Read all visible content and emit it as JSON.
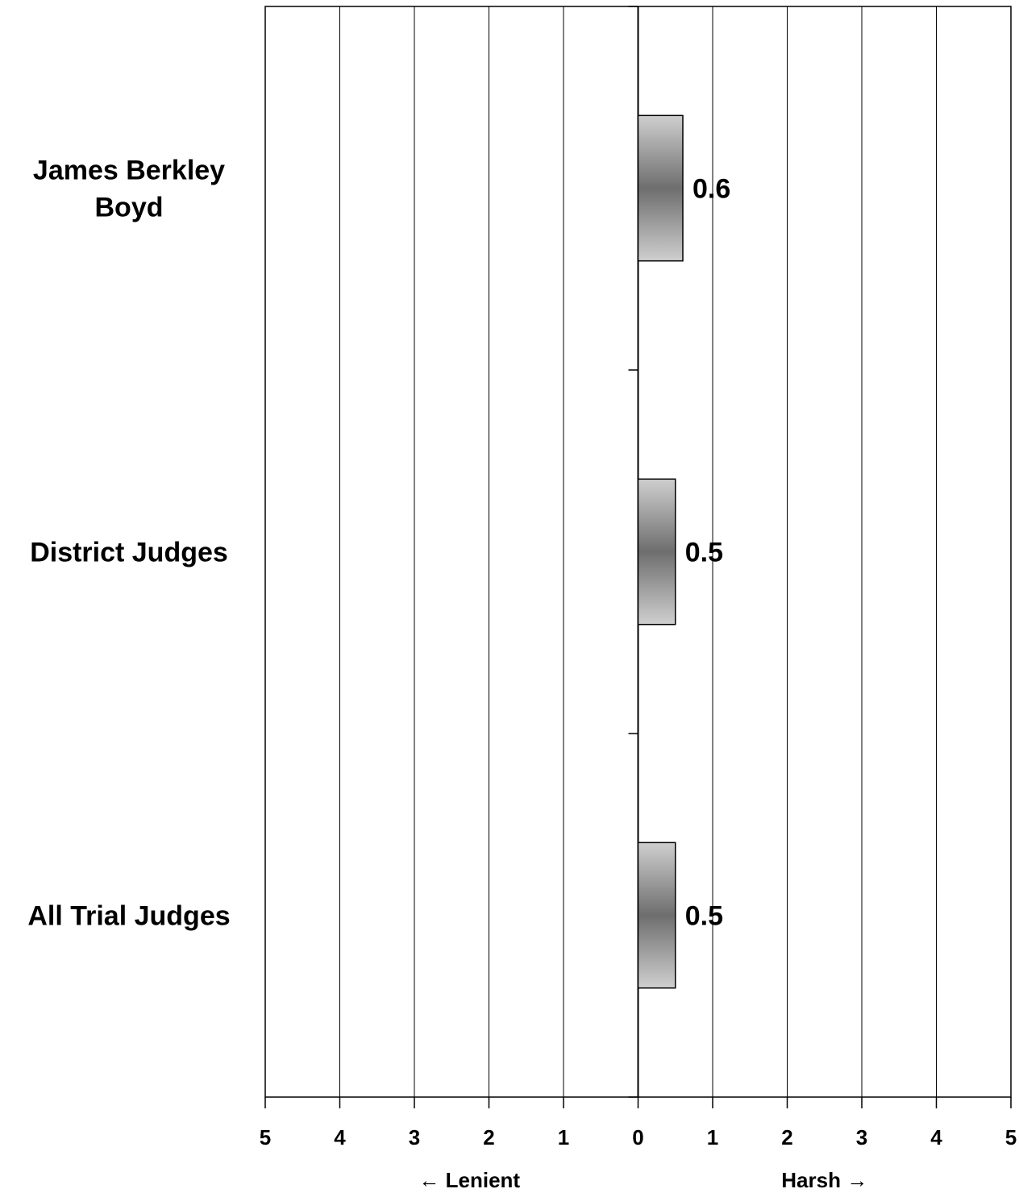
{
  "chart_data": {
    "type": "bar",
    "orientation": "horizontal",
    "categories": [
      [
        "James Berkley",
        "Boyd"
      ],
      [
        "District Judges"
      ],
      [
        "All Trial Judges"
      ]
    ],
    "values": [
      0.6,
      0.5,
      0.5
    ],
    "data_labels": [
      "0.6",
      "0.5",
      "0.5"
    ],
    "xlim": [
      -5,
      5
    ],
    "x_tick_values": [
      -5,
      -4,
      -3,
      -2,
      -1,
      0,
      1,
      2,
      3,
      4,
      5
    ],
    "x_tick_labels": [
      "5",
      "4",
      "3",
      "2",
      "1",
      "0",
      "1",
      "2",
      "3",
      "4",
      "5"
    ],
    "left_direction_label": "← Lenient",
    "right_direction_label": "Harsh →",
    "grid": true,
    "legend": "none",
    "bar_fill": "gradient-gray",
    "colors": {
      "bar_light": "#cfcfcf",
      "bar_dark": "#6e6e6e",
      "grid": "#000000",
      "background": "#ffffff"
    }
  }
}
